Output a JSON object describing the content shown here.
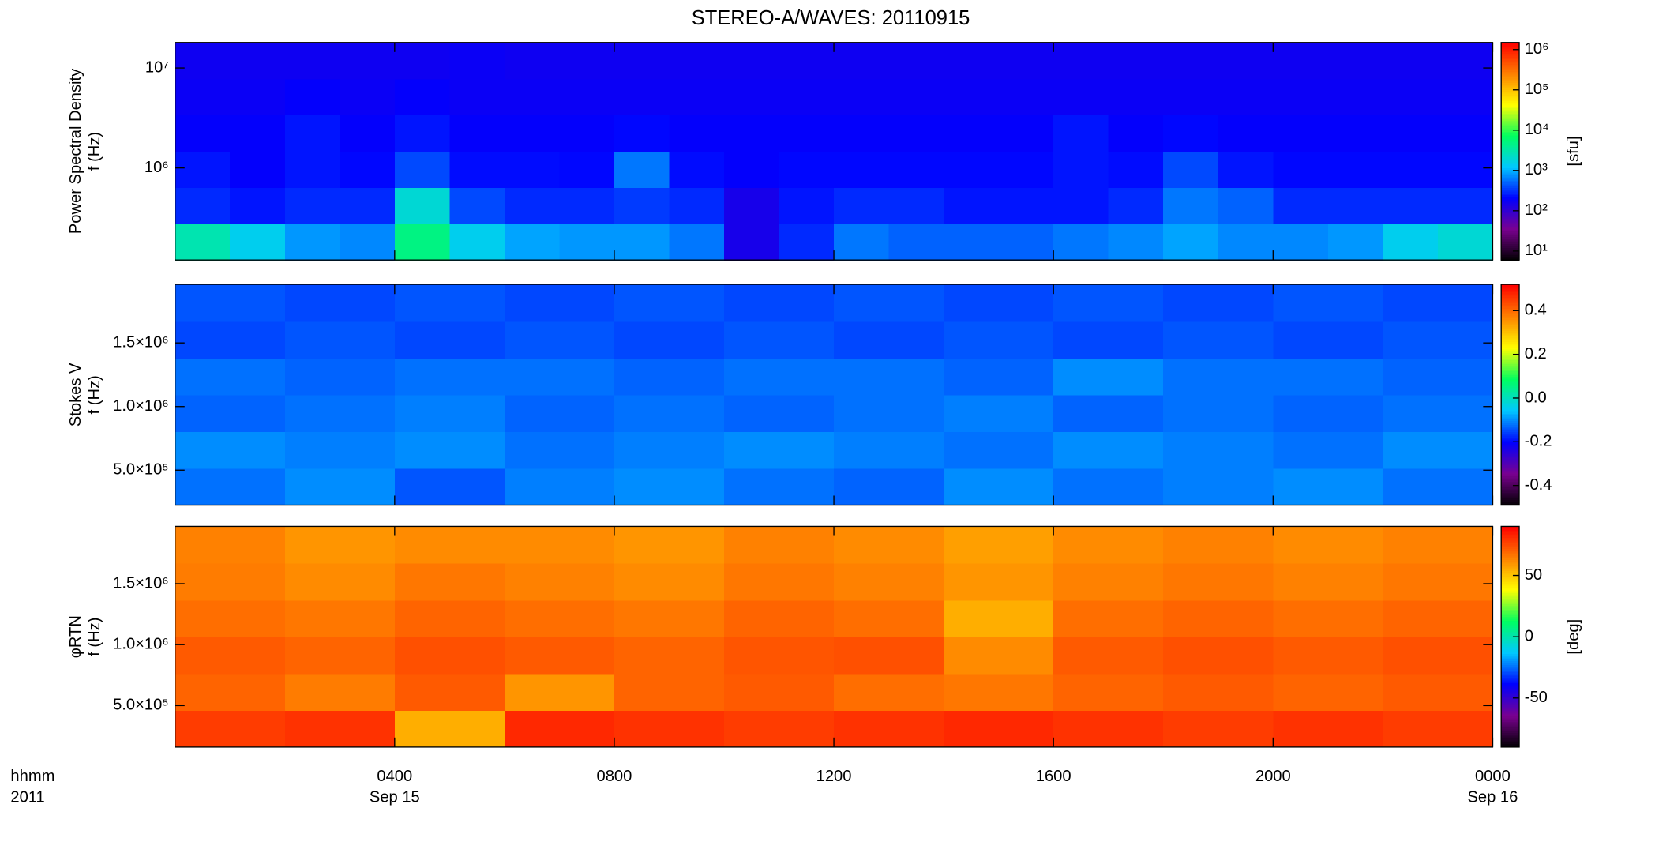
{
  "chart_data": [
    {
      "type": "heatmap",
      "title": "STEREO-A/WAVES: 20110915",
      "ylabel": [
        "Power Spectral Density",
        "f (Hz)"
      ],
      "colorbar_label": "[sfu]",
      "ylog": true,
      "ylim": [
        120000,
        18000000
      ],
      "yticks": [
        {
          "value": 1000000,
          "label": "10⁶"
        },
        {
          "value": 10000000,
          "label": "10⁷"
        }
      ],
      "clog": true,
      "clim": [
        6,
        1500000
      ],
      "cticks": [
        {
          "value": 10,
          "label": "10¹"
        },
        {
          "value": 100,
          "label": "10²"
        },
        {
          "value": 1000,
          "label": "10³"
        },
        {
          "value": 10000,
          "label": "10⁴"
        },
        {
          "value": 100000,
          "label": "10⁵"
        },
        {
          "value": 1000000,
          "label": "10⁶"
        }
      ],
      "colormap": [
        "#000000",
        "#7a0090",
        "#0000ff",
        "#00c8ff",
        "#00ff60",
        "#ffff00",
        "#ff8000",
        "#ff0000"
      ],
      "z": [
        [
          3000,
          1500,
          800,
          700,
          5000,
          1500,
          900,
          800,
          800,
          600,
          150,
          300,
          600,
          500,
          500,
          500,
          600,
          700,
          900,
          700,
          700,
          800,
          1500,
          2000
        ],
        [
          300,
          250,
          300,
          300,
          2000,
          400,
          300,
          300,
          350,
          300,
          150,
          250,
          300,
          300,
          250,
          250,
          250,
          300,
          600,
          500,
          300,
          300,
          300,
          300
        ],
        [
          250,
          200,
          250,
          220,
          400,
          230,
          230,
          220,
          600,
          230,
          200,
          220,
          220,
          220,
          220,
          220,
          250,
          230,
          400,
          250,
          220,
          220,
          220,
          220
        ],
        [
          200,
          200,
          250,
          200,
          250,
          200,
          200,
          200,
          220,
          200,
          200,
          200,
          200,
          200,
          200,
          200,
          250,
          200,
          220,
          200,
          200,
          200,
          200,
          200
        ],
        [
          180,
          180,
          200,
          180,
          200,
          180,
          180,
          180,
          180,
          180,
          180,
          180,
          180,
          180,
          180,
          180,
          180,
          180,
          180,
          180,
          180,
          180,
          180,
          180
        ],
        [
          170,
          170,
          170,
          170,
          170,
          180,
          170,
          170,
          170,
          170,
          170,
          170,
          170,
          170,
          170,
          170,
          170,
          170,
          170,
          170,
          170,
          170,
          170,
          170
        ]
      ]
    },
    {
      "type": "heatmap",
      "ylabel": [
        "Stokes V",
        "f (Hz)"
      ],
      "ylim": [
        225000,
        1960000
      ],
      "yticks": [
        {
          "value": 500000,
          "label": "5.0×10⁵"
        },
        {
          "value": 1000000,
          "label": "1.0×10⁶"
        },
        {
          "value": 1500000,
          "label": "1.5×10⁶"
        }
      ],
      "clim": [
        -0.49,
        0.52
      ],
      "cticks": [
        -0.4,
        -0.2,
        {
          "value": 0,
          "label": "0.0"
        },
        0.2,
        0.4
      ],
      "colormap": [
        "#000000",
        "#7a0090",
        "#0000ff",
        "#00c8ff",
        "#00ff60",
        "#ffff00",
        "#ff8000",
        "#ff0000"
      ],
      "z": [
        [
          -0.12,
          -0.1,
          -0.14,
          -0.11,
          -0.1,
          -0.12,
          -0.13,
          -0.1,
          -0.12,
          -0.11,
          -0.1,
          -0.12
        ],
        [
          -0.1,
          -0.11,
          -0.1,
          -0.12,
          -0.11,
          -0.1,
          -0.11,
          -0.12,
          -0.1,
          -0.11,
          -0.12,
          -0.1
        ],
        [
          -0.13,
          -0.12,
          -0.11,
          -0.13,
          -0.12,
          -0.13,
          -0.12,
          -0.11,
          -0.13,
          -0.12,
          -0.13,
          -0.12
        ],
        [
          -0.12,
          -0.13,
          -0.12,
          -0.12,
          -0.13,
          -0.12,
          -0.12,
          -0.13,
          -0.1,
          -0.12,
          -0.12,
          -0.13
        ],
        [
          -0.15,
          -0.14,
          -0.15,
          -0.14,
          -0.15,
          -0.14,
          -0.15,
          -0.14,
          -0.15,
          -0.14,
          -0.15,
          -0.14
        ],
        [
          -0.14,
          -0.15,
          -0.14,
          -0.15,
          -0.14,
          -0.15,
          -0.14,
          -0.15,
          -0.14,
          -0.15,
          -0.14,
          -0.15
        ]
      ]
    },
    {
      "type": "heatmap",
      "ylabel": [
        "φRTN",
        "f (Hz)"
      ],
      "colorbar_label": "[deg]",
      "ylim": [
        160000,
        1970000
      ],
      "yticks": [
        {
          "value": 500000,
          "label": "5.0×10⁵"
        },
        {
          "value": 1000000,
          "label": "1.0×10⁶"
        },
        {
          "value": 1500000,
          "label": "1.5×10⁶"
        }
      ],
      "clim": [
        -90,
        90
      ],
      "cticks": [
        -50,
        0,
        50
      ],
      "colormap": [
        "#000000",
        "#7a0090",
        "#0000ff",
        "#00c8ff",
        "#00ff60",
        "#ffff00",
        "#ff8000",
        "#ff0000"
      ],
      "xlim": [
        0,
        24
      ],
      "xticks": [
        {
          "value": 4,
          "label": "0400"
        },
        {
          "value": 8,
          "label": "0800"
        },
        {
          "value": 12,
          "label": "1200"
        },
        {
          "value": 16,
          "label": "1600"
        },
        {
          "value": 20,
          "label": "2000"
        },
        {
          "value": 24,
          "label": "0000"
        }
      ],
      "xdates": [
        {
          "value": 4,
          "label": "Sep 15"
        },
        {
          "value": 24,
          "label": "Sep 16"
        }
      ],
      "xlabel": [
        "hhmm",
        "2011"
      ],
      "z": [
        [
          78,
          80,
          55,
          82,
          80,
          78,
          80,
          82,
          80,
          78,
          80,
          78
        ],
        [
          70,
          65,
          72,
          60,
          70,
          72,
          68,
          66,
          70,
          72,
          70,
          72
        ],
        [
          72,
          70,
          74,
          72,
          70,
          73,
          74,
          62,
          72,
          74,
          72,
          74
        ],
        [
          68,
          66,
          70,
          68,
          66,
          70,
          68,
          55,
          68,
          70,
          68,
          70
        ],
        [
          65,
          62,
          66,
          64,
          62,
          66,
          64,
          60,
          64,
          66,
          64,
          66
        ],
        [
          64,
          60,
          62,
          62,
          60,
          64,
          62,
          58,
          62,
          64,
          62,
          64
        ]
      ]
    }
  ]
}
